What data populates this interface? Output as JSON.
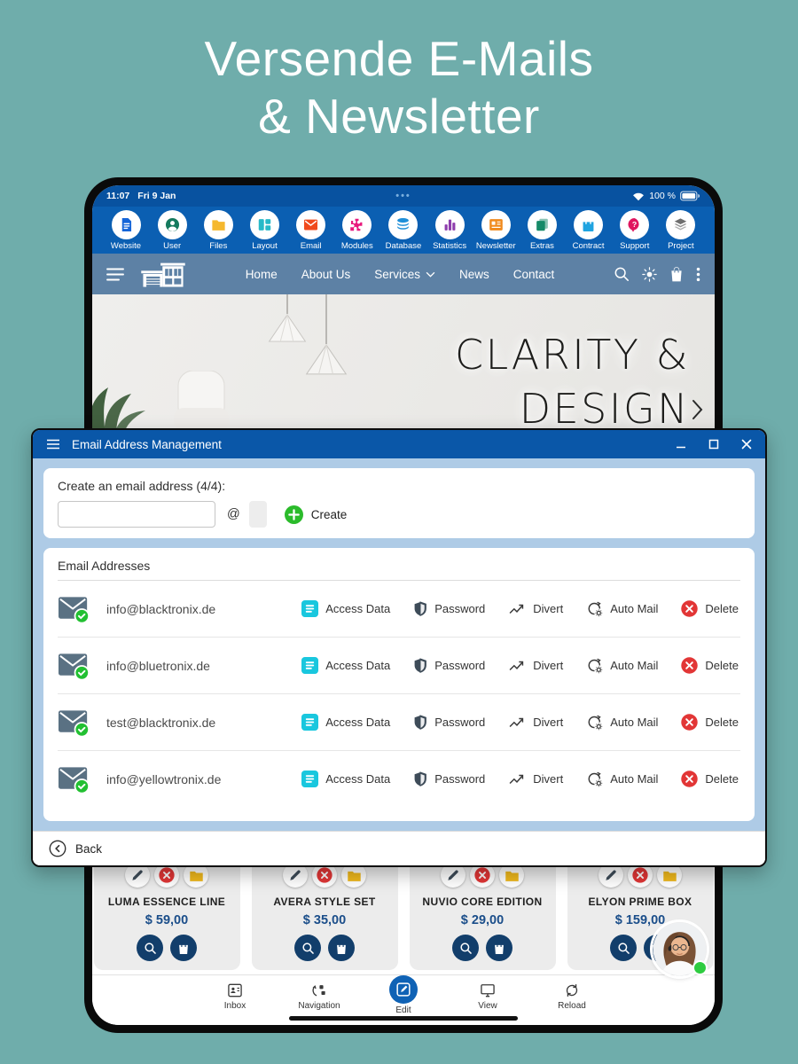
{
  "page": {
    "title_line1": "Versende E-Mails",
    "title_line2": "& Newsletter"
  },
  "statusbar": {
    "time": "11:07",
    "date": "Fri 9 Jan",
    "menu_dots": "•••",
    "battery": "100 %"
  },
  "toolbar": {
    "items": [
      {
        "label": "Website",
        "icon": "website-icon",
        "color": "#1565d8"
      },
      {
        "label": "User",
        "icon": "user-icon",
        "color": "#157a5e"
      },
      {
        "label": "Files",
        "icon": "files-icon",
        "color": "#f5b82e"
      },
      {
        "label": "Layout",
        "icon": "layout-icon",
        "color": "#28b9c8"
      },
      {
        "label": "Email",
        "icon": "email-icon",
        "color": "#f04a1d"
      },
      {
        "label": "Modules",
        "icon": "modules-icon",
        "color": "#e8197d"
      },
      {
        "label": "Database",
        "icon": "database-icon",
        "color": "#1f8fd8"
      },
      {
        "label": "Statistics",
        "icon": "statistics-icon",
        "color": "#8e3dad"
      },
      {
        "label": "Newsletter",
        "icon": "newsletter-icon",
        "color": "#f08a1d"
      },
      {
        "label": "Extras",
        "icon": "extras-icon",
        "color": "#168a68"
      },
      {
        "label": "Contract",
        "icon": "contract-icon",
        "color": "#1fa3e0"
      },
      {
        "label": "Support",
        "icon": "support-icon",
        "color": "#e0155e"
      },
      {
        "label": "Project",
        "icon": "project-icon",
        "color": "#6e6e6e"
      }
    ]
  },
  "site_nav": {
    "links": [
      {
        "label": "Home"
      },
      {
        "label": "About Us"
      },
      {
        "label": "Services",
        "dropdown": true
      },
      {
        "label": "News"
      },
      {
        "label": "Contact"
      }
    ]
  },
  "hero": {
    "line1": "CLARITY &",
    "line2": "DESIGN"
  },
  "modal": {
    "title": "Email Address Management",
    "create_label": "Create an email address (4/4):",
    "create_input_value": "",
    "at_symbol": "@",
    "create_button": "Create",
    "list_title": "Email Addresses",
    "action_labels": {
      "access": "Access Data",
      "password": "Password",
      "divert": "Divert",
      "automail": "Auto Mail",
      "delete": "Delete"
    },
    "rows": [
      {
        "email": "info@blacktronix.de"
      },
      {
        "email": "info@bluetronix.de"
      },
      {
        "email": "test@blacktronix.de"
      },
      {
        "email": "info@yellowtronix.de"
      }
    ],
    "back_button": "Back"
  },
  "products": {
    "items": [
      {
        "name": "LUMA ESSENCE LINE",
        "price": "$ 59,00"
      },
      {
        "name": "AVERA STYLE SET",
        "price": "$ 35,00"
      },
      {
        "name": "NUVIO CORE EDITION",
        "price": "$ 29,00"
      },
      {
        "name": "ELYON PRIME BOX",
        "price": "$ 159,00"
      }
    ]
  },
  "bottom_nav": {
    "items": [
      {
        "label": "Inbox",
        "icon": "inbox-icon",
        "color": "#3a3a3a"
      },
      {
        "label": "Navigation",
        "icon": "navigation-icon",
        "color": "#3a3a3a"
      },
      {
        "label": "Edit",
        "icon": "edit-icon",
        "color": "#ffffff",
        "active": true
      },
      {
        "label": "View",
        "icon": "view-icon",
        "color": "#3a3a3a"
      },
      {
        "label": "Reload",
        "icon": "reload-icon",
        "color": "#3a3a3a"
      }
    ]
  },
  "colors": {
    "teal_background": "#6fadab",
    "statusbar_blue": "#0852a0",
    "toolbar_blue": "#0b5fb2",
    "site_nav_blue": "#5d81a5",
    "modal_titlebar_blue": "#0a57a8",
    "modal_body_blue": "#aecbe6",
    "create_green": "#2bbb2b",
    "check_green": "#22c032",
    "access_cyan": "#19c7de",
    "delete_red": "#e23636",
    "price_navy": "#1b4e8a",
    "product_button_navy": "#123e6b",
    "active_nav_blue": "#0f62b5",
    "envelope_slate": "#5a7183"
  }
}
